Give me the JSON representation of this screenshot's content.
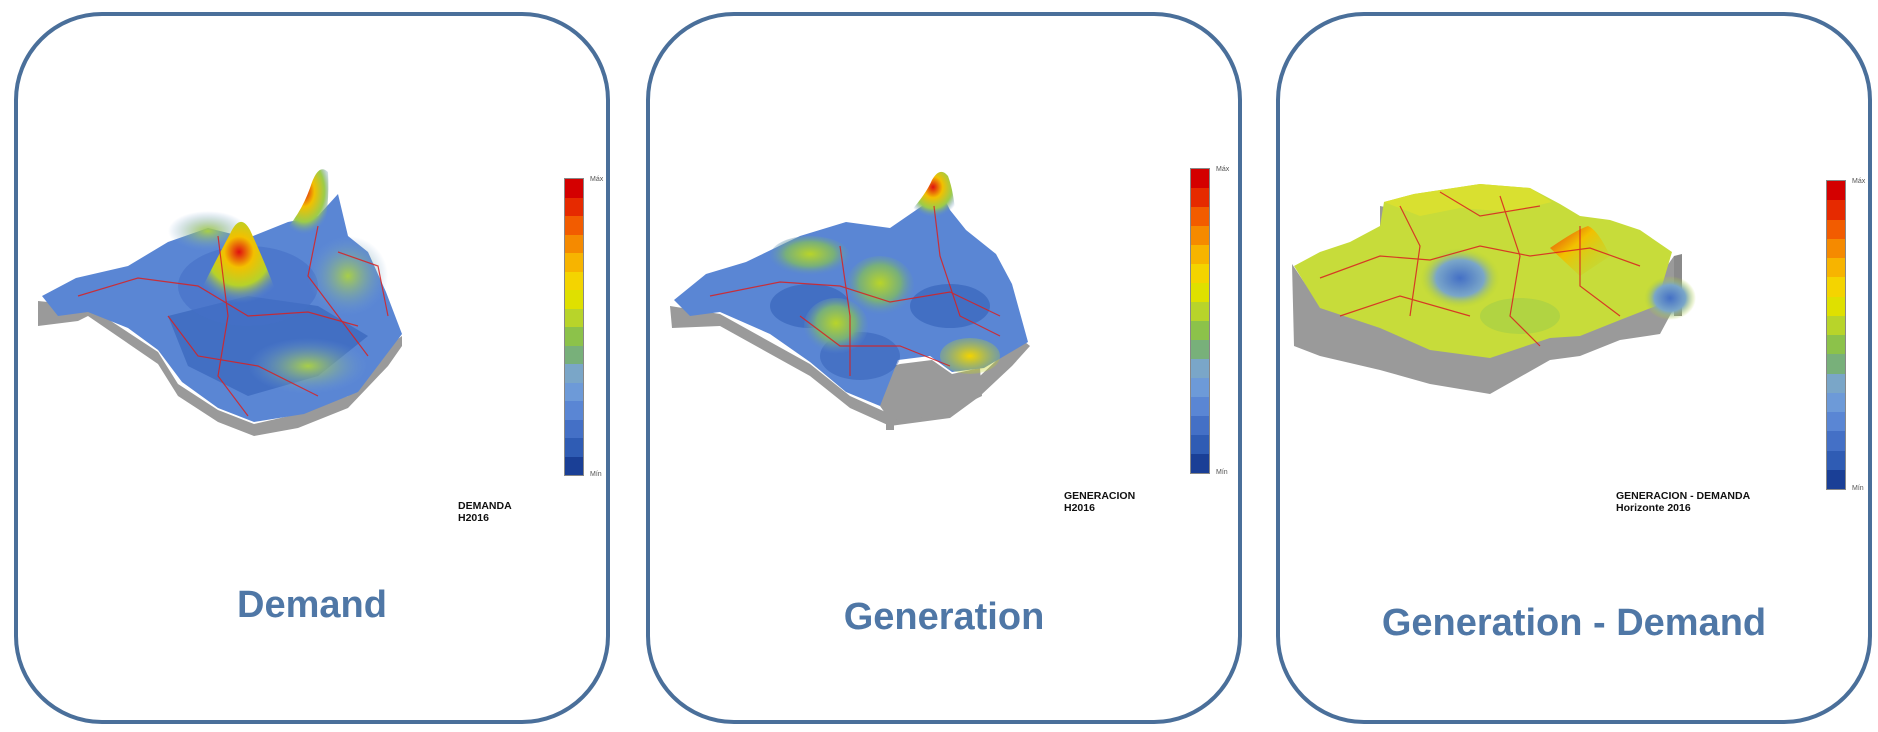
{
  "panels": [
    {
      "caption": "Demand",
      "map_label_line1": "DEMANDA",
      "map_label_line2": "H2016",
      "legend_max": "Máx",
      "legend_min": "Mín"
    },
    {
      "caption": "Generation",
      "map_label_line1": "GENERACION",
      "map_label_line2": "H2016",
      "legend_max": "Máx",
      "legend_min": "Mín"
    },
    {
      "caption": "Generation - Demand",
      "map_label_line1": "GENERACION - DEMANDA",
      "map_label_line2": "Horizonte 2016",
      "legend_max": "Máx",
      "legend_min": "Mín"
    }
  ],
  "colors": {
    "border": "#4a6f9a",
    "caption": "#4f77a6",
    "road": "#d92020",
    "wall": "#9a9a9a",
    "scale": [
      "#d40000",
      "#e62a00",
      "#f25c00",
      "#f58a00",
      "#f7b400",
      "#f4d400",
      "#dfe000",
      "#b8d42a",
      "#8cc24a",
      "#78b07a",
      "#7aa6c8",
      "#6d9ad8",
      "#5a86d4",
      "#4470c6",
      "#2f5cb4",
      "#1a3f96"
    ]
  }
}
